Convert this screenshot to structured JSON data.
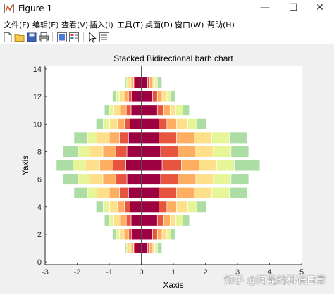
{
  "window": {
    "title": "Figure 1",
    "minimize_glyph": "—",
    "maximize_glyph": "☐",
    "close_glyph": "✕"
  },
  "menu": [
    "文件(F)",
    "编辑(E)",
    "查看(V)",
    "插入(I)",
    "工具(T)",
    "桌面(D)",
    "窗口(W)",
    "帮助(H)"
  ],
  "toolbar": [
    "new-file-icon",
    "open-folder-icon",
    "save-icon",
    "print-icon",
    "link-plot-icon",
    "insert-legend-icon",
    "select-arrow-icon",
    "property-inspector-icon"
  ],
  "watermark": "知乎 @阿昆的科研日常",
  "chart_data": {
    "type": "bar",
    "orientation": "horizontal",
    "stacking": "bidirectional",
    "title": "Stacked Bidirectional barh chart",
    "xlabel": "Xaxis",
    "ylabel": "Yaxis",
    "xlim": [
      -3,
      5
    ],
    "ylim": [
      -0.2,
      14.2
    ],
    "xticks": [
      -3,
      -2,
      -1,
      0,
      1,
      2,
      3,
      4,
      5
    ],
    "yticks": [
      0,
      2,
      4,
      6,
      8,
      10,
      12,
      14
    ],
    "categories": [
      1,
      2,
      3,
      4,
      5,
      6,
      7,
      8,
      9,
      10,
      11,
      12,
      13
    ],
    "colors": [
      "#9e0142",
      "#d53e4f",
      "#f46d43",
      "#fdae61",
      "#fee08b",
      "#e6f598",
      "#abdda4",
      "#66c2a5",
      "#3288bd",
      "#5e4fa2"
    ],
    "colors_used": [
      "#9e0142",
      "#e8553f",
      "#fdae61",
      "#fee08b",
      "#e6f598",
      "#abdda4",
      "#66c2a5",
      "#5e64a8"
    ],
    "left_series": [
      [
        0.2,
        0.04,
        0.08,
        0.1,
        0.05,
        0.05
      ],
      [
        0.3,
        0.1,
        0.14,
        0.14,
        0.1,
        0.12
      ],
      [
        0.32,
        0.15,
        0.18,
        0.21,
        0.14,
        0.15
      ],
      [
        0.35,
        0.18,
        0.22,
        0.24,
        0.2,
        0.22
      ],
      [
        0.4,
        0.28,
        0.32,
        0.38,
        0.3,
        0.42
      ],
      [
        0.45,
        0.35,
        0.4,
        0.42,
        0.35,
        0.48
      ],
      [
        0.48,
        0.4,
        0.42,
        0.45,
        0.38,
        0.52
      ],
      [
        0.45,
        0.35,
        0.4,
        0.42,
        0.35,
        0.48
      ],
      [
        0.4,
        0.28,
        0.32,
        0.38,
        0.3,
        0.42
      ],
      [
        0.35,
        0.18,
        0.22,
        0.24,
        0.2,
        0.22
      ],
      [
        0.32,
        0.15,
        0.18,
        0.21,
        0.14,
        0.15
      ],
      [
        0.3,
        0.1,
        0.14,
        0.14,
        0.1,
        0.12
      ],
      [
        0.2,
        0.04,
        0.08,
        0.1,
        0.05,
        0.05
      ]
    ],
    "right_series": [
      [
        0.2,
        0.06,
        0.1,
        0.06,
        0.08,
        0.14
      ],
      [
        0.35,
        0.15,
        0.15,
        0.15,
        0.12,
        0.13
      ],
      [
        0.5,
        0.2,
        0.2,
        0.18,
        0.22,
        0.2
      ],
      [
        0.55,
        0.25,
        0.3,
        0.35,
        0.28,
        0.3
      ],
      [
        0.55,
        0.55,
        0.55,
        0.55,
        0.55,
        0.55
      ],
      [
        0.6,
        0.55,
        0.55,
        0.55,
        0.55,
        0.55
      ],
      [
        0.65,
        0.6,
        0.55,
        0.55,
        0.55,
        0.8
      ],
      [
        0.6,
        0.55,
        0.55,
        0.55,
        0.55,
        0.55
      ],
      [
        0.55,
        0.55,
        0.55,
        0.55,
        0.55,
        0.55
      ],
      [
        0.55,
        0.25,
        0.3,
        0.35,
        0.28,
        0.3
      ],
      [
        0.5,
        0.2,
        0.2,
        0.18,
        0.22,
        0.2
      ],
      [
        0.35,
        0.15,
        0.15,
        0.15,
        0.12,
        0.13
      ],
      [
        0.2,
        0.06,
        0.1,
        0.06,
        0.08,
        0.14
      ]
    ]
  }
}
